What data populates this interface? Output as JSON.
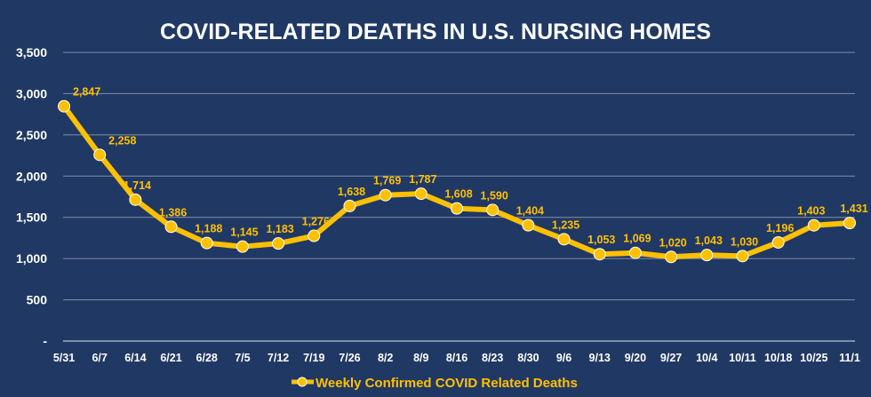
{
  "chart_data": {
    "type": "line",
    "title": "COVID-RELATED DEATHS IN U.S. NURSING HOMES",
    "categories": [
      "5/31",
      "6/7",
      "6/14",
      "6/21",
      "6/28",
      "7/5",
      "7/12",
      "7/19",
      "7/26",
      "8/2",
      "8/9",
      "8/16",
      "8/23",
      "8/30",
      "9/6",
      "9/13",
      "9/20",
      "9/27",
      "10/4",
      "10/11",
      "10/18",
      "10/25",
      "11/1"
    ],
    "series": [
      {
        "name": "Weekly Confirmed COVID Related Deaths",
        "values": [
          2847,
          2258,
          1714,
          1386,
          1188,
          1145,
          1183,
          1276,
          1638,
          1769,
          1787,
          1608,
          1590,
          1404,
          1235,
          1053,
          1069,
          1020,
          1043,
          1030,
          1196,
          1403,
          1431
        ],
        "data_labels": [
          "2,847",
          "2,258",
          "1,714",
          "1,386",
          "1,188",
          "1,145",
          "1,183",
          "1,276",
          "1,638",
          "1,769",
          "1,787",
          "1,608",
          "1,590",
          "1,404",
          "1,235",
          "1,053",
          "1,069",
          "1,020",
          "1,043",
          "1,030",
          "1,196",
          "1,403",
          "1,431"
        ],
        "color": "#ffc000"
      }
    ],
    "ylim": [
      0,
      3500
    ],
    "yticks": [
      0,
      500,
      1000,
      1500,
      2000,
      2500,
      3000,
      3500
    ],
    "ytick_labels": [
      "-",
      "500",
      "1,000",
      "1,500",
      "2,000",
      "2,500",
      "3,000",
      "3,500"
    ],
    "xlabel": "",
    "ylabel": "",
    "grid": true,
    "legend": "bottom",
    "background": "#203864",
    "grid_color": "#7f8fa9"
  }
}
